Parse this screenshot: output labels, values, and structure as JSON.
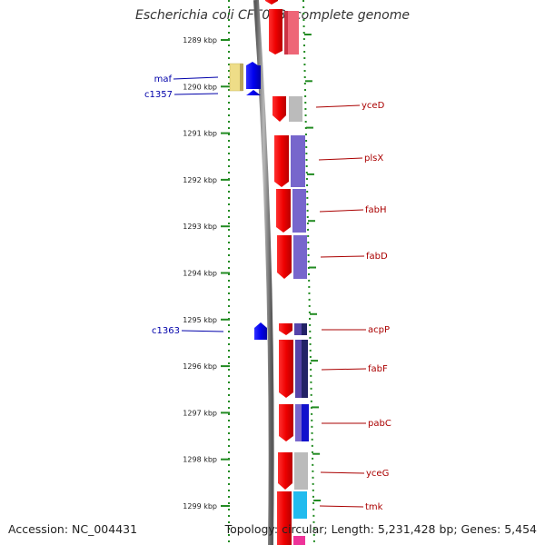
{
  "title": "Escherichia coli CFT073, complete genome",
  "footer": {
    "accession": "Accession: NC_004431",
    "topology": "Topology: circular; Length: 5,231,428 bp; Genes: 5,454"
  },
  "ruler": {
    "unit": "kbp",
    "ticks": [
      {
        "kbp": 1289,
        "label": "1289 kbp"
      },
      {
        "kbp": 1290,
        "label": "1290 kbp"
      },
      {
        "kbp": 1291,
        "label": "1291 kbp"
      },
      {
        "kbp": 1292,
        "label": "1292 kbp"
      },
      {
        "kbp": 1293,
        "label": "1293 kbp"
      },
      {
        "kbp": 1294,
        "label": "1294 kbp"
      },
      {
        "kbp": 1295,
        "label": "1295 kbp"
      },
      {
        "kbp": 1296,
        "label": "1296 kbp"
      },
      {
        "kbp": 1297,
        "label": "1297 kbp"
      },
      {
        "kbp": 1298,
        "label": "1298 kbp"
      },
      {
        "kbp": 1299,
        "label": "1299 kbp"
      }
    ]
  },
  "left_labels": [
    {
      "name": "maf",
      "color": "#0000aa"
    },
    {
      "name": "c1357",
      "color": "#0000aa"
    },
    {
      "name": "c1363",
      "color": "#0000aa"
    }
  ],
  "right_labels": [
    {
      "name": "yceD",
      "color": "#aa0000"
    },
    {
      "name": "plsX",
      "color": "#aa0000"
    },
    {
      "name": "fabH",
      "color": "#aa0000"
    },
    {
      "name": "fabD",
      "color": "#aa0000"
    },
    {
      "name": "acpP",
      "color": "#aa0000"
    },
    {
      "name": "fabF",
      "color": "#aa0000"
    },
    {
      "name": "pabC",
      "color": "#aa0000"
    },
    {
      "name": "yceG",
      "color": "#aa0000"
    },
    {
      "name": "tmk",
      "color": "#aa0000"
    }
  ],
  "colors": {
    "forward_gene": "#ff0000",
    "reverse_gene": "#0000ee",
    "ruler_dots": "#228b22",
    "backbone": "#808080",
    "cog_gray": "#bbbbbb",
    "cog_purple": "#7766cc",
    "cog_navy": "#2a2a88",
    "cog_cyan": "#22bbee",
    "cog_pink": "#ee6677",
    "cog_yellow": "#eedd88"
  }
}
